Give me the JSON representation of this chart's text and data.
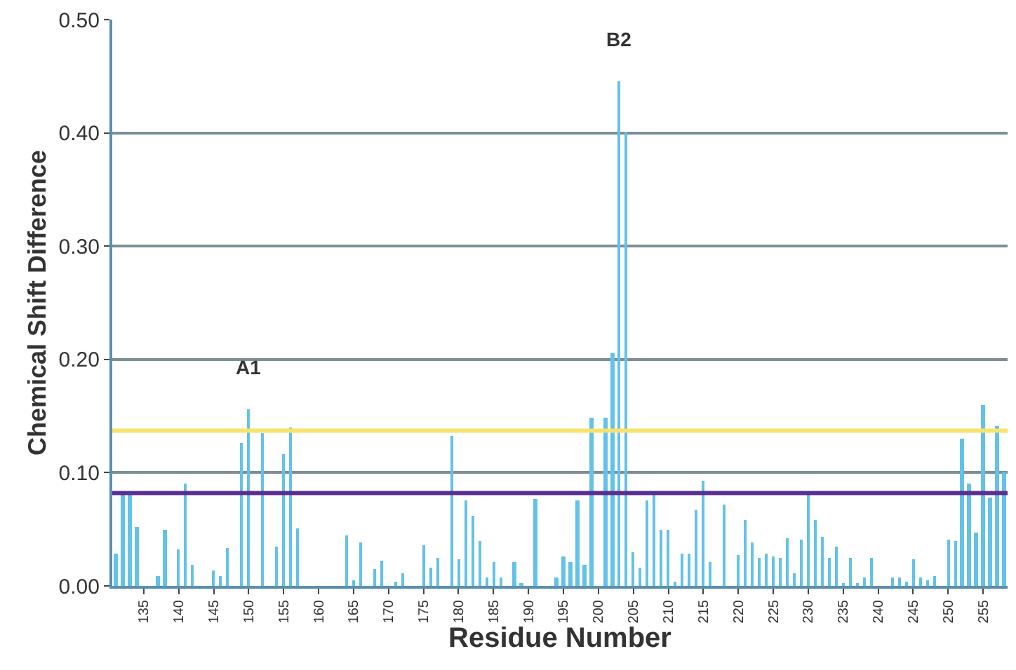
{
  "chart_data": {
    "type": "bar",
    "xlabel": "Residue Number",
    "ylabel": "Chemical Shift Difference",
    "x": [
      131,
      132,
      133,
      134,
      137,
      138,
      140,
      141,
      142,
      145,
      146,
      147,
      149,
      150,
      152,
      154,
      155,
      156,
      157,
      164,
      165,
      166,
      168,
      169,
      171,
      172,
      175,
      176,
      177,
      179,
      180,
      181,
      182,
      183,
      184,
      185,
      186,
      188,
      189,
      191,
      194,
      195,
      196,
      197,
      198,
      199,
      201,
      202,
      203,
      204,
      205,
      206,
      207,
      208,
      209,
      210,
      211,
      212,
      213,
      214,
      215,
      216,
      218,
      220,
      221,
      222,
      223,
      224,
      225,
      226,
      227,
      228,
      229,
      230,
      231,
      232,
      233,
      234,
      235,
      236,
      237,
      238,
      239,
      242,
      243,
      244,
      245,
      246,
      247,
      248,
      250,
      251,
      252,
      253,
      254,
      255,
      256,
      257,
      258
    ],
    "series": [
      {
        "color": "#62c2ea",
        "values": [
          0.029,
          0.08,
          0.08,
          0.052,
          0.009,
          0.05,
          0.032,
          0.09,
          0.018,
          0.014,
          0.009,
          0.034,
          0.126,
          0.156,
          0.135,
          0.035,
          0.116,
          0.14,
          0.051,
          0.044,
          0.005,
          0.038,
          0.015,
          0.022,
          0.004,
          0.011,
          0.036,
          0.016,
          0.025,
          0.133,
          0.023,
          0.075,
          0.062,
          0.04,
          0.007,
          0.021,
          0.007,
          0.021,
          0.002,
          0.077,
          0.007,
          0.026,
          0.021,
          0.075,
          0.019,
          0.149,
          0.149,
          0.206,
          0.446,
          0.401,
          0.03,
          0.016,
          0.075,
          0.081,
          0.049,
          0.049,
          0.004,
          0.029,
          0.029,
          0.067,
          0.093,
          0.021,
          0.072,
          0.027,
          0.058,
          0.038,
          0.025,
          0.028,
          0.026,
          0.025,
          0.042,
          0.011,
          0.041,
          0.08,
          0.058,
          0.043,
          0.025,
          0.035,
          0.003,
          0.025,
          0.003,
          0.008,
          0.025,
          0.007,
          0.008,
          0.004,
          0.023,
          0.007,
          0.005,
          0.009,
          0.041,
          0.04,
          0.13,
          0.09,
          0.047,
          0.16,
          0.078,
          0.141,
          0.1
        ]
      }
    ],
    "xlim": [
      130.5,
      258.5
    ],
    "xticks": [
      135,
      140,
      145,
      150,
      155,
      160,
      165,
      170,
      175,
      180,
      185,
      190,
      195,
      200,
      205,
      210,
      215,
      220,
      225,
      230,
      235,
      240,
      245,
      250,
      255
    ],
    "ylim": [
      0,
      0.5
    ],
    "yticks": [
      {
        "value": 0,
        "label": "0.00"
      },
      {
        "value": 0.1,
        "label": "0.10"
      },
      {
        "value": 0.2,
        "label": "0.20"
      },
      {
        "value": 0.3,
        "label": "0.30"
      },
      {
        "value": 0.4,
        "label": "0.40"
      },
      {
        "value": 0.5,
        "label": "0.50"
      }
    ],
    "grid": "y",
    "ref_lines": [
      {
        "axis": "y",
        "value": 0.137,
        "color": "#f7e26b"
      },
      {
        "axis": "y",
        "value": 0.082,
        "color": "#5a2d8f"
      }
    ],
    "annotations": [
      {
        "text": "A1",
        "x": 150,
        "y": 0.156
      },
      {
        "text": "B2",
        "x": 203,
        "y": 0.446
      }
    ]
  }
}
